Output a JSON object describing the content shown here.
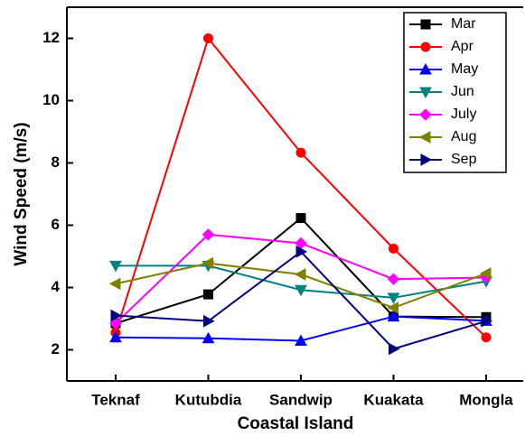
{
  "chart_data": {
    "type": "line",
    "x_label": "Coastal Island",
    "y_label": "Wind Speed (m/s)",
    "categories": [
      "Teknaf",
      "Kutubdia",
      "Sandwip",
      "Kuakata",
      "Mongla"
    ],
    "ylim": [
      1,
      13
    ],
    "yticks": [
      2,
      4,
      6,
      8,
      10,
      12
    ],
    "legend": "top-right",
    "series": [
      {
        "name": "Mar",
        "color": "#000000",
        "marker": "square",
        "values": [
          2.85,
          3.78,
          6.23,
          3.07,
          3.05
        ]
      },
      {
        "name": "Apr",
        "color": "#ff0000",
        "marker": "circle",
        "values": [
          2.55,
          12.0,
          8.33,
          5.25,
          2.4
        ]
      },
      {
        "name": "May",
        "color": "#0000ff",
        "marker": "triangle-up",
        "values": [
          2.4,
          2.37,
          2.29,
          3.07,
          2.93
        ]
      },
      {
        "name": "Jun",
        "color": "#008080",
        "marker": "triangle-down",
        "values": [
          4.7,
          4.7,
          3.92,
          3.67,
          4.2
        ]
      },
      {
        "name": "July",
        "color": "#ff00ff",
        "marker": "diamond",
        "values": [
          2.85,
          5.7,
          5.42,
          4.27,
          4.32
        ]
      },
      {
        "name": "Aug",
        "color": "#808000",
        "marker": "triangle-left",
        "values": [
          4.12,
          4.78,
          4.42,
          3.35,
          4.45
        ]
      },
      {
        "name": "Sep",
        "color": "#000080",
        "marker": "triangle-right",
        "values": [
          3.1,
          2.92,
          5.15,
          2.03,
          2.92
        ]
      }
    ]
  }
}
